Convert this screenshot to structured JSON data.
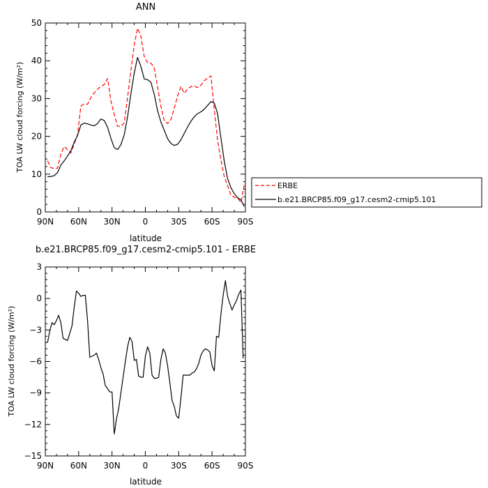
{
  "chart_data": [
    {
      "type": "line",
      "title": "ANN",
      "xlabel": "latitude",
      "ylabel": "TOA LW cloud forcing (W/m²)",
      "xlim": [
        90,
        -90
      ],
      "ylim": [
        0,
        50
      ],
      "xticks": [
        90,
        60,
        30,
        0,
        -30,
        -60,
        -90
      ],
      "xtick_labels": [
        "90N",
        "60N",
        "30N",
        "0",
        "30S",
        "60S",
        "90S"
      ],
      "yticks": [
        0,
        10,
        20,
        30,
        40,
        50
      ],
      "ytick_labels": [
        "0",
        "10",
        "20",
        "30",
        "40",
        "50"
      ],
      "legend_position": "right",
      "series": [
        {
          "name": "ERBE",
          "color": "#ff0000",
          "dash": "dashed",
          "x": [
            88,
            85,
            82,
            79,
            76,
            73,
            70,
            67,
            64,
            61,
            58,
            55,
            52,
            49,
            46,
            43,
            40,
            37,
            34,
            31,
            28,
            25,
            22,
            19,
            16,
            13,
            10,
            7,
            4,
            1,
            -2,
            -5,
            -8,
            -11,
            -14,
            -17,
            -20,
            -23,
            -26,
            -29,
            -32,
            -35,
            -38,
            -41,
            -44,
            -47,
            -50,
            -53,
            -56,
            -59,
            -62,
            -65,
            -68,
            -71,
            -74,
            -77,
            -80,
            -83,
            -86,
            -89
          ],
          "y": [
            13.5,
            11.7,
            11.5,
            11.6,
            15.3,
            17.3,
            16.5,
            15.6,
            18,
            20.4,
            28,
            28.6,
            28.5,
            30.3,
            31.5,
            32.5,
            33.2,
            33.7,
            35.3,
            29.4,
            25.8,
            22.7,
            22.6,
            23.6,
            30.3,
            37.4,
            44.3,
            48.6,
            46.5,
            41.1,
            39.5,
            39.4,
            38.1,
            33.1,
            28,
            24.1,
            23.4,
            24.5,
            27.5,
            30.6,
            33.2,
            31.4,
            32.5,
            33.2,
            33.3,
            32.9,
            33.5,
            34.7,
            35.4,
            36,
            27,
            19,
            13.7,
            9.3,
            7,
            4.4,
            3.9,
            3.7,
            2.5,
            7.1
          ]
        },
        {
          "name": "b.e21.BRCP85.f09_g17.cesm2-cmip5.101",
          "color": "#000000",
          "dash": "solid",
          "x": [
            88,
            85,
            82,
            79,
            76,
            73,
            70,
            67,
            64,
            61,
            58,
            55,
            52,
            49,
            46,
            43,
            40,
            37,
            34,
            31,
            28,
            25,
            22,
            19,
            16,
            13,
            10,
            7,
            4,
            1,
            -2,
            -5,
            -8,
            -11,
            -14,
            -17,
            -20,
            -23,
            -26,
            -29,
            -32,
            -35,
            -38,
            -41,
            -44,
            -47,
            -50,
            -53,
            -56,
            -59,
            -62,
            -65,
            -68,
            -71,
            -74,
            -77,
            -80,
            -83,
            -86,
            -89
          ],
          "y": [
            9.3,
            9.4,
            9.6,
            10.4,
            12.4,
            13.5,
            14.8,
            16.2,
            18.5,
            20.2,
            23,
            23.5,
            23.3,
            23,
            22.8,
            23.4,
            24.6,
            24.2,
            22.4,
            19.5,
            17,
            16.5,
            17.8,
            20.4,
            25.2,
            31.3,
            36.8,
            40.9,
            38.5,
            35.2,
            35,
            34.3,
            31.1,
            26.8,
            23.8,
            21.6,
            19.4,
            18.1,
            17.6,
            17.9,
            19.1,
            20.8,
            22.5,
            24,
            25.2,
            26,
            26.5,
            27.2,
            28.2,
            29.2,
            28.8,
            26,
            19.6,
            13.4,
            8.8,
            6.4,
            4.8,
            3.8,
            3.2,
            1.4
          ]
        }
      ]
    },
    {
      "type": "line",
      "title": "b.e21.BRCP85.f09_g17.cesm2-cmip5.101 - ERBE",
      "xlabel": "latitude",
      "ylabel": "TOA LW cloud forcing (W/m²)",
      "xlim": [
        90,
        -90
      ],
      "ylim": [
        -15,
        3
      ],
      "xticks": [
        90,
        60,
        30,
        0,
        -30,
        -60,
        -90
      ],
      "xtick_labels": [
        "90N",
        "60N",
        "30N",
        "0",
        "30S",
        "60S",
        "90S"
      ],
      "yticks": [
        3,
        0,
        -3,
        -6,
        -9,
        -12,
        -15
      ],
      "ytick_labels": [
        "3",
        "0",
        "−3",
        "−6",
        "−9",
        "−12",
        "−15"
      ],
      "series": [
        {
          "color": "#000000",
          "dash": "solid",
          "x": [
            88,
            86,
            84,
            82,
            80,
            78,
            76,
            74,
            72,
            70,
            68,
            66,
            64,
            62,
            60,
            58,
            56,
            54,
            52,
            50,
            48,
            46,
            44,
            42,
            40,
            38,
            36,
            34,
            32,
            30,
            28,
            26,
            24,
            22,
            20,
            18,
            16,
            14,
            12,
            10,
            8,
            6,
            4,
            2,
            0,
            -2,
            -4,
            -6,
            -8,
            -10,
            -12,
            -14,
            -16,
            -18,
            -20,
            -22,
            -24,
            -26,
            -28,
            -30,
            -32,
            -34,
            -36,
            -38,
            -40,
            -42,
            -44,
            -46,
            -48,
            -50,
            -52,
            -54,
            -56,
            -58,
            -60,
            -62,
            -64,
            -66,
            -68,
            -70,
            -72,
            -74,
            -76,
            -78,
            -80,
            -82,
            -84,
            -86,
            -88
          ],
          "y": [
            -4.2,
            -3.1,
            -2.3,
            -2.5,
            -2.1,
            -1.6,
            -2.3,
            -3.8,
            -3.9,
            -4,
            -3.3,
            -2.6,
            -0.8,
            0.7,
            0.5,
            0.2,
            0.3,
            0.3,
            -2.1,
            -5.6,
            -5.5,
            -5.4,
            -5.2,
            -5.8,
            -6.6,
            -7.2,
            -8.3,
            -8.6,
            -8.9,
            -8.9,
            -12.9,
            -11.5,
            -10.5,
            -9,
            -7.5,
            -6,
            -4.6,
            -3.7,
            -4.1,
            -5.9,
            -5.8,
            -7.4,
            -7.5,
            -7.5,
            -5.5,
            -4.6,
            -5.2,
            -7.3,
            -7.6,
            -7.6,
            -7.5,
            -5.8,
            -4.8,
            -5.2,
            -6.4,
            -8,
            -9.7,
            -10.3,
            -11.2,
            -11.4,
            -9.5,
            -7.3,
            -7.3,
            -7.3,
            -7.3,
            -7.1,
            -7,
            -6.7,
            -6.2,
            -5.4,
            -5,
            -4.8,
            -4.9,
            -5.1,
            -6.4,
            -6.9,
            -3.6,
            -3.7,
            -1.5,
            0.3,
            1.7,
            0.2,
            -0.5,
            -1.1,
            -0.6,
            -0.2,
            0.4,
            0.8,
            -5.7
          ]
        }
      ]
    }
  ]
}
